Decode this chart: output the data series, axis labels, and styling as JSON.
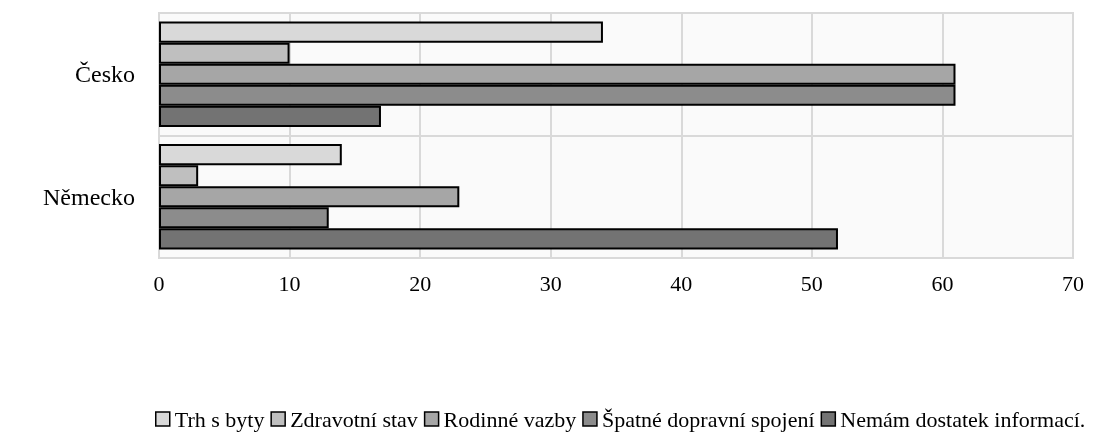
{
  "chart_data": {
    "type": "bar",
    "orientation": "horizontal",
    "categories": [
      "Česko",
      "Německo"
    ],
    "series": [
      {
        "name": "Trh s byty",
        "color": "#d9d9d9",
        "values": [
          34,
          14
        ]
      },
      {
        "name": "Zdravotní stav",
        "color": "#bfbfbf",
        "values": [
          10,
          3
        ]
      },
      {
        "name": "Rodinné vazby",
        "color": "#a6a6a6",
        "values": [
          61,
          23
        ]
      },
      {
        "name": "Špatné dopravní spojení",
        "color": "#8c8c8c",
        "values": [
          61,
          13
        ]
      },
      {
        "name": "Nemám dostatek informací.",
        "color": "#737373",
        "values": [
          17,
          52
        ]
      }
    ],
    "xlim": [
      0,
      70
    ],
    "xticks": [
      0,
      10,
      20,
      30,
      40,
      50,
      60,
      70
    ],
    "grid": true,
    "legend": "bottom"
  }
}
